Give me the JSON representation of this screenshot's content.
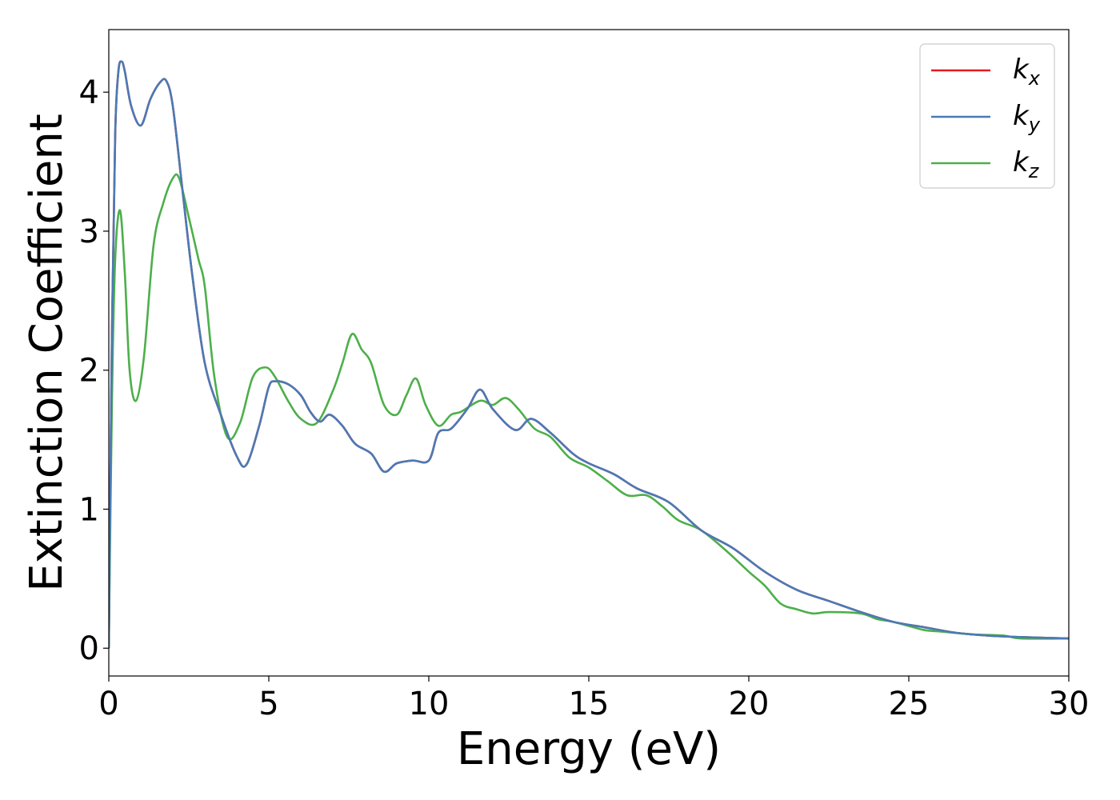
{
  "chart_data": {
    "type": "line",
    "title": "",
    "xlabel": "Energy (eV)",
    "ylabel": "Extinction Coefficient",
    "xlim": [
      0,
      30
    ],
    "ylim": [
      -0.2,
      4.45
    ],
    "xticks": [
      0,
      5,
      10,
      15,
      20,
      25,
      30
    ],
    "xtick_labels": [
      "0",
      "5",
      "10",
      "15",
      "20",
      "25",
      "30"
    ],
    "yticks": [
      0,
      1,
      2,
      3,
      4
    ],
    "ytick_labels": [
      "0",
      "1",
      "2",
      "3",
      "4"
    ],
    "grid": false,
    "legend_position": "top-right",
    "series": [
      {
        "name": "k_x",
        "legend_base": "k",
        "legend_sub": "x",
        "color": "#e41a1c",
        "x": [
          0,
          0.1,
          0.2,
          0.3,
          0.4,
          0.5,
          0.7,
          1.0,
          1.3,
          1.6,
          1.8,
          2.0,
          2.3,
          2.6,
          3.0,
          3.5,
          4.0,
          4.3,
          4.7,
          5.0,
          5.2,
          5.6,
          6.0,
          6.3,
          6.6,
          6.9,
          7.3,
          7.7,
          8.2,
          8.6,
          9.0,
          9.5,
          10.0,
          10.3,
          10.7,
          11.2,
          11.6,
          12.0,
          12.7,
          13.2,
          13.8,
          14.5,
          15.0,
          15.8,
          16.5,
          17.5,
          18.5,
          19.5,
          20.5,
          21.5,
          22.5,
          23.5,
          24.5,
          25.5,
          26.5,
          27.5,
          28.5,
          30.0
        ],
        "y": [
          0.0,
          2.3,
          3.7,
          4.15,
          4.22,
          4.15,
          3.9,
          3.76,
          3.95,
          4.07,
          4.08,
          3.9,
          3.3,
          2.7,
          2.05,
          1.68,
          1.38,
          1.32,
          1.6,
          1.88,
          1.92,
          1.9,
          1.82,
          1.7,
          1.63,
          1.68,
          1.6,
          1.47,
          1.4,
          1.27,
          1.33,
          1.35,
          1.35,
          1.55,
          1.58,
          1.72,
          1.86,
          1.72,
          1.57,
          1.65,
          1.55,
          1.4,
          1.33,
          1.25,
          1.15,
          1.05,
          0.85,
          0.72,
          0.55,
          0.42,
          0.34,
          0.26,
          0.19,
          0.15,
          0.11,
          0.09,
          0.08,
          0.07
        ]
      },
      {
        "name": "k_y",
        "legend_base": "k",
        "legend_sub": "y",
        "color": "#4a7ab5",
        "x": [
          0,
          0.1,
          0.2,
          0.3,
          0.4,
          0.5,
          0.7,
          1.0,
          1.3,
          1.6,
          1.8,
          2.0,
          2.3,
          2.6,
          3.0,
          3.5,
          4.0,
          4.3,
          4.7,
          5.0,
          5.2,
          5.6,
          6.0,
          6.3,
          6.6,
          6.9,
          7.3,
          7.7,
          8.2,
          8.6,
          9.0,
          9.5,
          10.0,
          10.3,
          10.7,
          11.2,
          11.6,
          12.0,
          12.7,
          13.2,
          13.8,
          14.5,
          15.0,
          15.8,
          16.5,
          17.5,
          18.5,
          19.5,
          20.5,
          21.5,
          22.5,
          23.5,
          24.5,
          25.5,
          26.5,
          27.5,
          28.5,
          30.0
        ],
        "y": [
          0.0,
          2.3,
          3.7,
          4.15,
          4.22,
          4.15,
          3.9,
          3.76,
          3.95,
          4.07,
          4.08,
          3.9,
          3.3,
          2.7,
          2.05,
          1.68,
          1.38,
          1.32,
          1.6,
          1.88,
          1.92,
          1.9,
          1.82,
          1.7,
          1.63,
          1.68,
          1.6,
          1.47,
          1.4,
          1.27,
          1.33,
          1.35,
          1.35,
          1.55,
          1.58,
          1.72,
          1.86,
          1.72,
          1.57,
          1.65,
          1.55,
          1.4,
          1.33,
          1.25,
          1.15,
          1.05,
          0.85,
          0.72,
          0.55,
          0.42,
          0.34,
          0.26,
          0.19,
          0.15,
          0.11,
          0.09,
          0.08,
          0.07
        ]
      },
      {
        "name": "k_z",
        "legend_base": "k",
        "legend_sub": "z",
        "color": "#4daf4a",
        "x": [
          0,
          0.1,
          0.2,
          0.35,
          0.5,
          0.65,
          0.85,
          1.1,
          1.4,
          1.7,
          2.0,
          2.2,
          2.5,
          2.8,
          3.0,
          3.3,
          3.7,
          4.1,
          4.5,
          4.9,
          5.2,
          5.6,
          6.0,
          6.5,
          7.0,
          7.3,
          7.6,
          7.9,
          8.2,
          8.6,
          9.0,
          9.3,
          9.6,
          9.9,
          10.3,
          10.7,
          11.0,
          11.6,
          12.0,
          12.4,
          12.8,
          13.3,
          13.8,
          14.4,
          15.0,
          15.6,
          16.2,
          16.8,
          17.3,
          17.8,
          18.5,
          19.3,
          20.0,
          20.5,
          21.0,
          21.5,
          22.0,
          22.5,
          23.5,
          24.0,
          24.5,
          25.0,
          25.5,
          26.0,
          27.0,
          28.0,
          28.5,
          30.0
        ],
        "y": [
          0.0,
          1.8,
          2.8,
          3.15,
          2.7,
          2.0,
          1.78,
          2.1,
          2.9,
          3.2,
          3.38,
          3.38,
          3.1,
          2.8,
          2.6,
          1.95,
          1.52,
          1.62,
          1.95,
          2.02,
          1.95,
          1.78,
          1.65,
          1.62,
          1.85,
          2.05,
          2.26,
          2.15,
          2.05,
          1.75,
          1.68,
          1.82,
          1.94,
          1.75,
          1.6,
          1.68,
          1.7,
          1.78,
          1.75,
          1.8,
          1.72,
          1.58,
          1.52,
          1.37,
          1.3,
          1.2,
          1.1,
          1.1,
          1.02,
          0.92,
          0.85,
          0.7,
          0.55,
          0.45,
          0.32,
          0.28,
          0.25,
          0.26,
          0.25,
          0.21,
          0.19,
          0.16,
          0.13,
          0.12,
          0.1,
          0.09,
          0.07,
          0.07
        ]
      }
    ]
  }
}
